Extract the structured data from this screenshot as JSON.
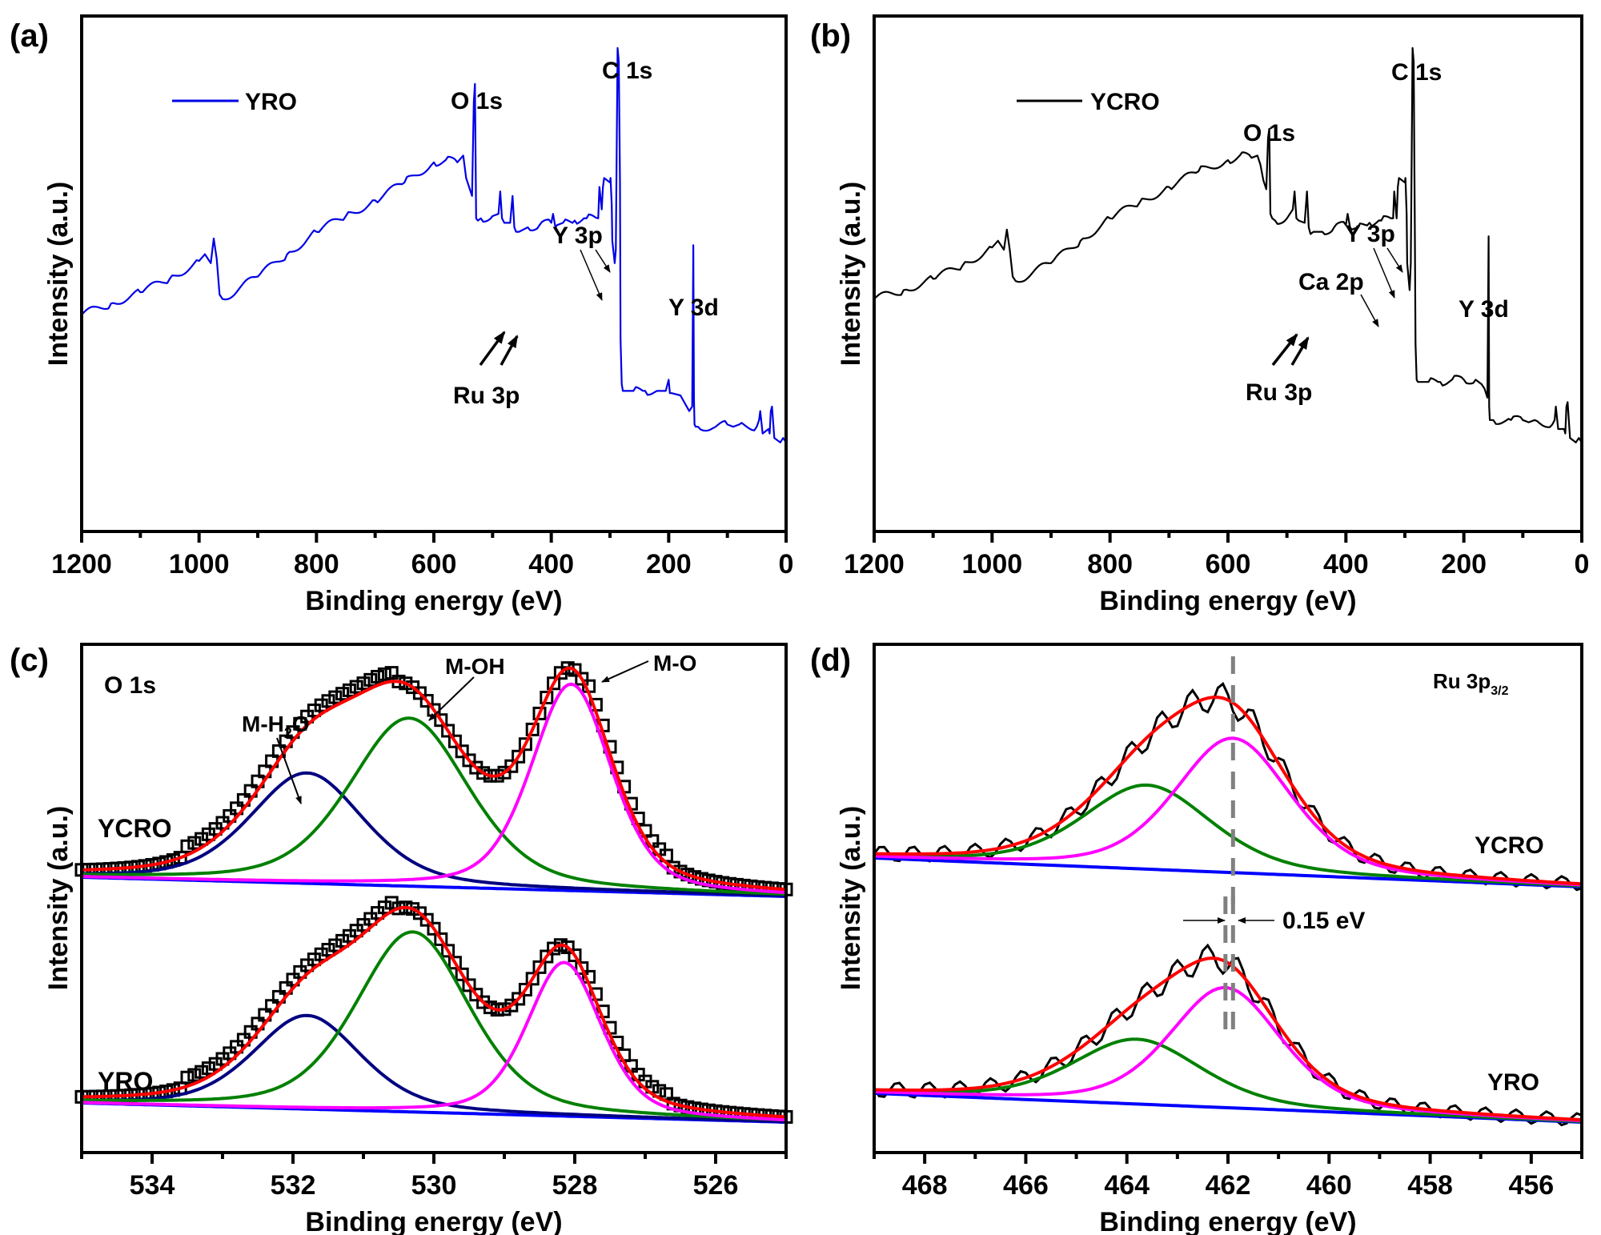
{
  "chart_data": [
    {
      "panel": "(a)",
      "type": "line",
      "xlabel": "Binding energy (eV)",
      "ylabel": "Intensity (a.u.)",
      "xlim": [
        1200,
        0
      ],
      "x_reversed": true,
      "ylim": [
        0,
        100
      ],
      "yticks_shown": false,
      "xticks": [
        1200,
        1000,
        800,
        600,
        400,
        200,
        0
      ],
      "legend": {
        "label": "YRO",
        "color": "#0000e6",
        "position": "top-left"
      },
      "series": [
        {
          "name": "YRO",
          "color": "#0000e6",
          "x": [
            1200,
            1150,
            1100,
            1050,
            1000,
            990,
            980,
            975,
            970,
            965,
            960,
            900,
            850,
            800,
            750,
            700,
            650,
            600,
            580,
            560,
            550,
            545,
            540,
            535,
            532,
            530,
            528,
            525,
            520,
            500,
            490,
            487,
            484,
            480,
            470,
            466,
            463,
            460,
            455,
            440,
            420,
            400,
            397,
            393,
            390,
            380,
            360,
            340,
            320,
            318,
            314,
            312,
            310,
            300,
            299,
            297,
            296,
            292,
            290,
            287,
            285,
            283,
            282,
            280,
            278,
            275,
            270,
            260,
            240,
            220,
            205,
            200,
            198,
            195,
            180,
            165,
            160,
            158,
            157,
            156,
            154,
            150,
            120,
            100,
            90,
            80,
            50,
            46,
            44,
            40,
            30,
            28,
            26,
            24,
            20,
            10,
            5,
            0
          ],
          "y": [
            40.5,
            43,
            45.5,
            48.5,
            52.5,
            54,
            52,
            57.5,
            53,
            45,
            44,
            49,
            54,
            59,
            62.5,
            66,
            70,
            74.5,
            75,
            74.5,
            76,
            71,
            69,
            67,
            88,
            92,
            62,
            61.5,
            62,
            62.5,
            63,
            68,
            62,
            61,
            61,
            67,
            60,
            59,
            59,
            60,
            60.5,
            61,
            63,
            60,
            60.5,
            61,
            61.5,
            62,
            62,
            69,
            64,
            69,
            71,
            70,
            71,
            65,
            57,
            52,
            55,
            100,
            97,
            70,
            35,
            25,
            23.5,
            23.5,
            23.5,
            23.5,
            23.5,
            23.5,
            23.5,
            26,
            23,
            23,
            22.5,
            19,
            20,
            56,
            22,
            16,
            15.5,
            15.5,
            15.5,
            16,
            15.5,
            16,
            15.5,
            17,
            19,
            14,
            15,
            14,
            19,
            20,
            13,
            12,
            13,
            12
          ]
        }
      ],
      "annotations": [
        {
          "text": "O 1s",
          "x": 531,
          "y": 92
        },
        {
          "text": "C 1s",
          "x": 285,
          "y": 100
        },
        {
          "text": "Y 3p",
          "x": 300,
          "y": 71,
          "arrows_to": [
            312,
            299
          ]
        },
        {
          "text": "Y 3d",
          "x": 157,
          "y": 56
        },
        {
          "text": "Ru 3p",
          "x": 470,
          "y": 62,
          "arrows_to": [
            484,
            463
          ]
        }
      ]
    },
    {
      "panel": "(b)",
      "type": "line",
      "xlabel": "Binding energy (eV)",
      "ylabel": "Intensity (a.u.)",
      "xlim": [
        1200,
        0
      ],
      "x_reversed": true,
      "ylim": [
        0,
        100
      ],
      "yticks_shown": false,
      "xticks": [
        1200,
        1000,
        800,
        600,
        400,
        200,
        0
      ],
      "legend": {
        "label": "YCRO",
        "color": "#000000",
        "position": "top-left"
      },
      "series": [
        {
          "name": "YCRO",
          "color": "#000000",
          "x": [
            1200,
            1150,
            1100,
            1050,
            1000,
            990,
            980,
            975,
            970,
            965,
            960,
            900,
            850,
            800,
            750,
            700,
            650,
            600,
            580,
            560,
            550,
            545,
            540,
            535,
            532,
            530,
            528,
            525,
            520,
            500,
            490,
            487,
            484,
            480,
            470,
            466,
            463,
            460,
            455,
            440,
            420,
            400,
            397,
            393,
            390,
            380,
            360,
            340,
            320,
            318,
            314,
            312,
            310,
            300,
            299,
            297,
            296,
            292,
            290,
            287,
            285,
            283,
            282,
            280,
            278,
            275,
            270,
            260,
            240,
            220,
            200,
            180,
            170,
            165,
            160,
            158,
            157,
            156,
            154,
            150,
            120,
            100,
            90,
            80,
            50,
            46,
            44,
            40,
            30,
            28,
            26,
            24,
            20,
            10,
            5,
            0
          ],
          "y": [
            44,
            46,
            48.5,
            51.5,
            55.5,
            57,
            55,
            59.5,
            55,
            49,
            48,
            52,
            57,
            62,
            65.5,
            69,
            72.5,
            75,
            76,
            75.5,
            76,
            74,
            70.5,
            68.5,
            80,
            82,
            63,
            62,
            61.5,
            62,
            64,
            68,
            62,
            61.5,
            61,
            68,
            60,
            58.5,
            59,
            59,
            60,
            60.5,
            63,
            60,
            59.5,
            60,
            61,
            61.5,
            62,
            68,
            62,
            69,
            71,
            70,
            71,
            63,
            52,
            46,
            52,
            100,
            97,
            58,
            34,
            26,
            25.5,
            25.5,
            25.5,
            25.5,
            25.5,
            26,
            26,
            26,
            25,
            24,
            22,
            58,
            20,
            17,
            17,
            17,
            17,
            17,
            16.5,
            17,
            16,
            17,
            20,
            15,
            15,
            14,
            20,
            21,
            13,
            12,
            13,
            12
          ]
        }
      ],
      "annotations": [
        {
          "text": "O 1s",
          "x": 531,
          "y": 82
        },
        {
          "text": "C 1s",
          "x": 285,
          "y": 100
        },
        {
          "text": "Y 3p",
          "x": 300,
          "y": 71,
          "arrows_to": [
            312,
            299
          ]
        },
        {
          "text": "Ca 2p",
          "x": 350,
          "y": 62,
          "arrows_to": [
            350
          ]
        },
        {
          "text": "Y 3d",
          "x": 157,
          "y": 58
        },
        {
          "text": "Ru 3p",
          "x": 470,
          "y": 62,
          "arrows_to": [
            484,
            463
          ]
        }
      ]
    },
    {
      "panel": "(c)",
      "type": "line",
      "title": "O 1s",
      "xlabel": "Binding energy (eV)",
      "ylabel": "Intensity (a.u.)",
      "xlim": [
        535,
        525
      ],
      "x_reversed": true,
      "ylim": [
        0,
        100
      ],
      "yticks_shown": false,
      "xticks": [
        534,
        532,
        530,
        528,
        526
      ],
      "component_colors": {
        "M-H2O": "#000080",
        "M-OH": "#008000",
        "M-O": "#ff00ff",
        "background": "#0000ff",
        "envelope": "#ff0000",
        "raw": "#000000"
      },
      "peak_labels": [
        "M-H2O",
        "M-OH",
        "M-O"
      ],
      "samples": [
        {
          "name": "YCRO",
          "offset": 50,
          "background": [
            535,
            4,
            525,
            0
          ],
          "components": [
            {
              "name": "M-H2O",
              "center": 531.8,
              "height": 23,
              "fwhm": 1.9
            },
            {
              "name": "M-OH",
              "center": 530.35,
              "height": 35,
              "fwhm": 2.0
            },
            {
              "name": "M-O",
              "center": 528.05,
              "height": 43,
              "fwhm": 1.35
            }
          ],
          "envelope_peak_values": {
            "528": 47,
            "530.4": 37,
            "529.1": 21
          }
        },
        {
          "name": "YRO",
          "offset": 3,
          "background": [
            535,
            4,
            525,
            0
          ],
          "components": [
            {
              "name": "M-H2O",
              "center": 531.8,
              "height": 19.5,
              "fwhm": 1.8
            },
            {
              "name": "M-OH",
              "center": 530.3,
              "height": 37.5,
              "fwhm": 1.9
            },
            {
              "name": "M-O",
              "center": 528.15,
              "height": 32,
              "fwhm": 1.25
            }
          ],
          "envelope_peak_values": {
            "528.1": 35,
            "530.4": 41,
            "529.1": 22
          }
        }
      ]
    },
    {
      "panel": "(d)",
      "type": "line",
      "title": "Ru 3p3/2",
      "xlabel": "Binding energy (eV)",
      "ylabel": "Intensity (a.u.)",
      "xlim": [
        469,
        455
      ],
      "x_reversed": true,
      "ylim": [
        0,
        100
      ],
      "yticks_shown": false,
      "xticks": [
        468,
        466,
        464,
        462,
        460,
        458,
        456
      ],
      "component_colors": {
        "low-BE": "#ff00ff",
        "high-BE": "#008000",
        "background": "#0000ff",
        "envelope": "#ff0000",
        "raw": "#000000"
      },
      "shift_annotation": {
        "text": "0.15 eV",
        "lines_at": [
          462.05,
          461.9
        ]
      },
      "samples": [
        {
          "name": "YCRO",
          "offset": 52,
          "background": [
            469,
            6,
            455,
            0
          ],
          "components": [
            {
              "name": "high-BE",
              "center": 463.6,
              "height": 17.5,
              "fwhm": 3.0
            },
            {
              "name": "low-BE",
              "center": 461.9,
              "height": 28,
              "fwhm": 2.7
            }
          ]
        },
        {
          "name": "YRO",
          "offset": 3,
          "background": [
            469,
            6,
            455,
            0
          ],
          "components": [
            {
              "name": "high-BE",
              "center": 463.8,
              "height": 13.5,
              "fwhm": 3.0
            },
            {
              "name": "low-BE",
              "center": 462.05,
              "height": 25,
              "fwhm": 2.6
            }
          ]
        }
      ]
    }
  ],
  "labels": {
    "panel_a": "(a)",
    "panel_b": "(b)",
    "panel_c": "(c)",
    "panel_d": "(d)",
    "xlabel": "Binding energy (eV)",
    "ylabel": "Intensity (a.u.)",
    "legend_a": "YRO",
    "legend_b": "YCRO",
    "o1s_a": "O 1s",
    "c1s_a": "C 1s",
    "y3p_a": "Y 3p",
    "y3d_a": "Y 3d",
    "ru3p_a": "Ru 3p",
    "o1s_b": "O 1s",
    "c1s_b": "C 1s",
    "y3p_b": "Y 3p",
    "ca2p_b": "Ca 2p",
    "y3d_b": "Y 3d",
    "ru3p_b": "Ru 3p",
    "c_title": "O 1s",
    "c_mh2o_main": "M-H",
    "c_mh2o_sub": "2",
    "c_mh2o_end": "O",
    "c_moh": "M-OH",
    "c_mo": "M-O",
    "c_ycro": "YCRO",
    "c_yro": "YRO",
    "d_title_main": "Ru 3p",
    "d_title_sub": "3/2",
    "d_ycro": "YCRO",
    "d_yro": "YRO",
    "d_shift": "0.15 eV"
  }
}
